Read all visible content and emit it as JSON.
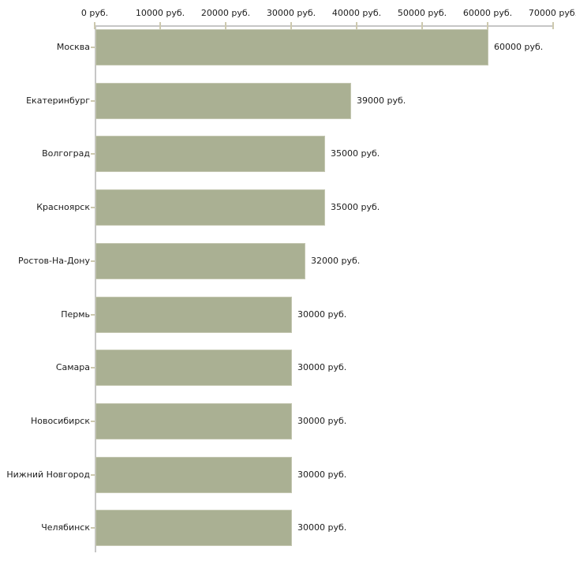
{
  "chart_data": {
    "type": "bar",
    "orientation": "horizontal",
    "categories": [
      "Москва",
      "Екатеринбург",
      "Волгоград",
      "Красноярск",
      "Ростов-На-Дону",
      "Пермь",
      "Самара",
      "Новосибирск",
      "Нижний Новгород",
      "Челябинск"
    ],
    "values": [
      60000,
      39000,
      35000,
      35000,
      32000,
      30000,
      30000,
      30000,
      30000,
      30000
    ],
    "value_labels": [
      "60000 руб.",
      "39000 руб.",
      "35000 руб.",
      "35000 руб.",
      "32000 руб.",
      "30000 руб.",
      "30000 руб.",
      "30000 руб.",
      "30000 руб.",
      "30000 руб."
    ],
    "unit": "руб.",
    "x_ticks": [
      0,
      10000,
      20000,
      30000,
      40000,
      50000,
      60000,
      70000
    ],
    "x_tick_labels": [
      "0 руб.",
      "10000 руб.",
      "20000 руб.",
      "30000 руб.",
      "40000 руб.",
      "50000 руб.",
      "60000 руб.",
      "70000 руб."
    ],
    "xlim": [
      0,
      70000
    ],
    "grid": false,
    "legend": "none",
    "colors": {
      "bar_fill": "#aab093",
      "bar_border": "#c5c8b2",
      "axis_line": "#c6c6c6",
      "tick_mark": "#cdc9ae",
      "text": "#1c1c1c",
      "background": "#ffffff"
    }
  }
}
